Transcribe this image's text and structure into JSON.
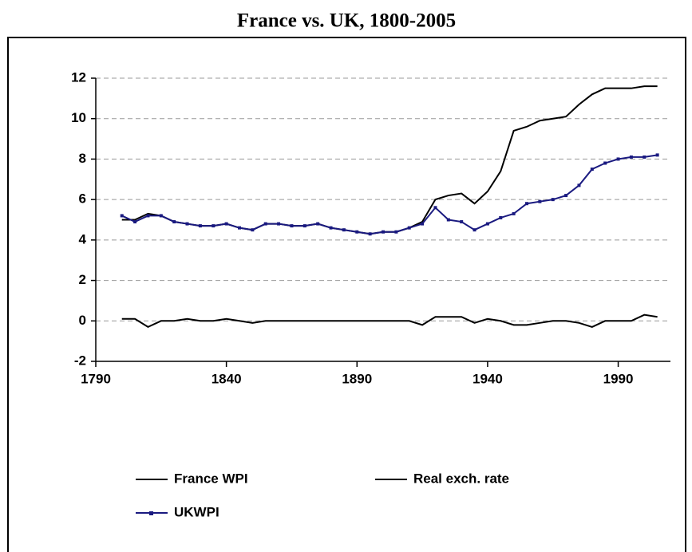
{
  "chart_data": {
    "type": "line",
    "title": "France vs. UK, 1800-2005",
    "x": [
      1800,
      1805,
      1810,
      1815,
      1820,
      1825,
      1830,
      1835,
      1840,
      1845,
      1850,
      1855,
      1860,
      1865,
      1870,
      1875,
      1880,
      1885,
      1890,
      1895,
      1900,
      1905,
      1910,
      1915,
      1920,
      1925,
      1930,
      1935,
      1940,
      1945,
      1950,
      1955,
      1960,
      1965,
      1970,
      1975,
      1980,
      1985,
      1990,
      1995,
      2000,
      2005
    ],
    "series": [
      {
        "name": "France WPI",
        "color": "#000000",
        "marker": false,
        "values": [
          5.0,
          5.0,
          5.3,
          5.2,
          4.9,
          4.8,
          4.7,
          4.7,
          4.8,
          4.6,
          4.5,
          4.8,
          4.8,
          4.7,
          4.7,
          4.8,
          4.6,
          4.5,
          4.4,
          4.3,
          4.4,
          4.4,
          4.6,
          4.9,
          6.0,
          6.2,
          6.3,
          5.8,
          6.4,
          7.4,
          9.4,
          9.6,
          9.9,
          10.0,
          10.1,
          10.7,
          11.2,
          11.5,
          11.5,
          11.5,
          11.6,
          11.6
        ]
      },
      {
        "name": "Real exch. rate",
        "color": "#000000",
        "marker": false,
        "values": [
          0.1,
          0.1,
          -0.3,
          0.0,
          0.0,
          0.1,
          0.0,
          0.0,
          0.1,
          0.0,
          -0.1,
          0.0,
          0.0,
          0.0,
          0.0,
          0.0,
          0.0,
          0.0,
          0.0,
          0.0,
          0.0,
          0.0,
          0.0,
          -0.2,
          0.2,
          0.2,
          0.2,
          -0.1,
          0.1,
          0.0,
          -0.2,
          -0.2,
          -0.1,
          0.0,
          0.0,
          -0.1,
          -0.3,
          0.0,
          0.0,
          0.0,
          0.3,
          0.2
        ]
      },
      {
        "name": "UKWPI",
        "color": "#1a1a80",
        "marker": true,
        "values": [
          5.2,
          4.9,
          5.2,
          5.2,
          4.9,
          4.8,
          4.7,
          4.7,
          4.8,
          4.6,
          4.5,
          4.8,
          4.8,
          4.7,
          4.7,
          4.8,
          4.6,
          4.5,
          4.4,
          4.3,
          4.4,
          4.4,
          4.6,
          4.8,
          5.6,
          5.0,
          4.9,
          4.5,
          4.8,
          5.1,
          5.3,
          5.8,
          5.9,
          6.0,
          6.2,
          6.7,
          7.5,
          7.8,
          8.0,
          8.1,
          8.1,
          8.2
        ]
      }
    ],
    "xlim": [
      1790,
      2010
    ],
    "xticks": [
      1790,
      1840,
      1890,
      1940,
      1990
    ],
    "ylim": [
      -2,
      12
    ],
    "yticks": [
      -2,
      0,
      2,
      4,
      6,
      8,
      10,
      12
    ],
    "grid": true,
    "legend": "bottom"
  }
}
